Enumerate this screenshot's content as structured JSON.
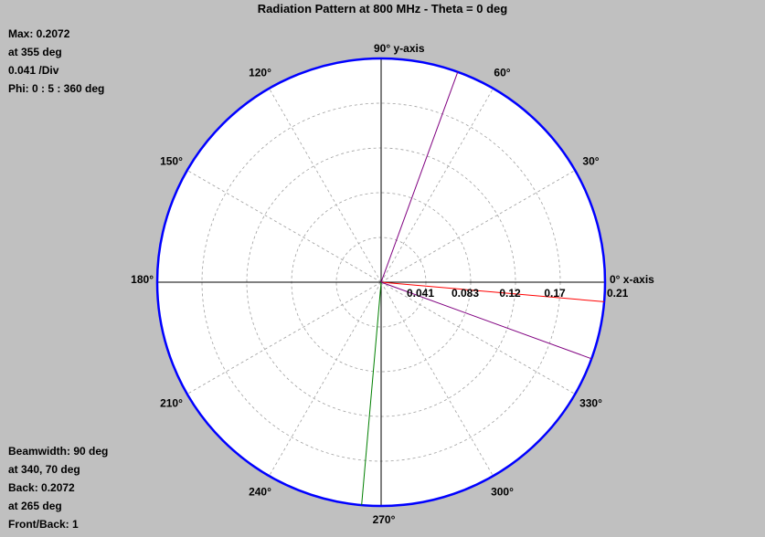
{
  "title": "Radiation Pattern at 800 MHz - Theta = 0 deg",
  "info_top": [
    "Max: 0.2072",
    "at 355 deg",
    "0.041 /Div",
    "Phi: 0 : 5 : 360 deg"
  ],
  "info_bottom": [
    "Beamwidth: 90 deg",
    "at 340, 70 deg",
    "Back: 0.2072",
    "at 265 deg",
    "Front/Back: 1"
  ],
  "chart_data": {
    "type": "polar",
    "title": "Radiation Pattern at 800 MHz - Theta = 0 deg",
    "r_max": 0.2072,
    "r_div": 0.041,
    "ring_labels": [
      "0.041",
      "0.083",
      "0.12",
      "0.17",
      "0.21"
    ],
    "ring_values": [
      0.041,
      0.083,
      0.12,
      0.17,
      0.21
    ],
    "angle_labels": [
      {
        "angle": 0,
        "label": "0°  x-axis"
      },
      {
        "angle": 30,
        "label": "30°"
      },
      {
        "angle": 60,
        "label": "60°"
      },
      {
        "angle": 90,
        "label": "90°  y-axis"
      },
      {
        "angle": 120,
        "label": "120°"
      },
      {
        "angle": 150,
        "label": "150°"
      },
      {
        "angle": 180,
        "label": "180°"
      },
      {
        "angle": 210,
        "label": "210°"
      },
      {
        "angle": 240,
        "label": "240°"
      },
      {
        "angle": 270,
        "label": "270°"
      },
      {
        "angle": 300,
        "label": "300°"
      },
      {
        "angle": 330,
        "label": "330°"
      }
    ],
    "grid": true,
    "markers": [
      {
        "angle": 355,
        "r": 0.2072,
        "role": "max",
        "color": "#ff0000"
      },
      {
        "angle": 340,
        "r": 0.2072,
        "role": "beamwidth",
        "color": "#800080"
      },
      {
        "angle": 70,
        "r": 0.2072,
        "role": "beamwidth",
        "color": "#800080"
      },
      {
        "angle": 265,
        "r": 0.2072,
        "role": "back",
        "color": "#008000"
      }
    ],
    "colors": {
      "outer_circle": "#0000ff",
      "grid": "#a0a0a0",
      "axes": "#000000"
    }
  }
}
